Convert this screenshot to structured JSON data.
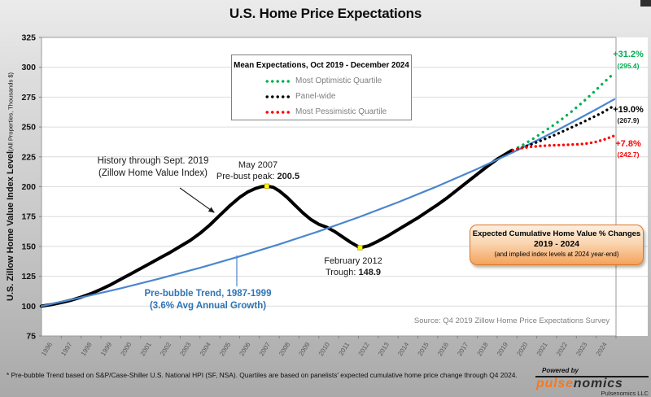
{
  "title": "U.S. Home Price Expectations",
  "y_axis": {
    "title_main": "U.S. Zillow Home Value Index Level",
    "title_sub": " (All Properties, Thousands $)"
  },
  "x_axis": {
    "years": [
      "1996",
      "1997",
      "1998",
      "1999",
      "2000",
      "2001",
      "2002",
      "2003",
      "2004",
      "2005",
      "2006",
      "2007",
      "2008",
      "2009",
      "2010",
      "2011",
      "2012",
      "2013",
      "2014",
      "2015",
      "2016",
      "2017",
      "2018",
      "2019",
      "2020",
      "2021",
      "2022",
      "2023",
      "2024"
    ]
  },
  "legend": {
    "title": "Mean Expectations, Oct 2019 - December 2024",
    "items": [
      {
        "label": "Most Optimistic Quartile",
        "color": "#00B050"
      },
      {
        "label": "Panel-wide",
        "color": "#000000"
      },
      {
        "label": "Most Pessimistic Quartile",
        "color": "#FF0000"
      }
    ]
  },
  "annotations": {
    "history": {
      "line1": "History through Sept. 2019",
      "line2": "(Zillow Home Value Index)"
    },
    "peak": {
      "line1": "May 2007",
      "label": "Pre-bust peak:",
      "value": "200.5"
    },
    "trough": {
      "line1": "February 2012",
      "label": "Trough:",
      "value": "148.9"
    },
    "trend": {
      "line1": "Pre-bubble Trend, 1987-1999",
      "line2": "(3.6% Avg Annual Growth)"
    },
    "optimistic": {
      "pct": "+31.2%",
      "implied": "(295.4)"
    },
    "panel": {
      "pct": "+19.0%",
      "implied": "(267.9)"
    },
    "pessimistic": {
      "pct": "+7.8%",
      "implied": "(242.7)"
    },
    "callout": {
      "line1": "Expected Cumulative Home Value % Changes",
      "line2": "2019 - 2024",
      "line3": "(and implied  index levels at 2024 year-end)"
    },
    "source": "Source: Q4 2019 Zillow Home Price Expectations Survey"
  },
  "footer": {
    "note": "* Pre-bubble Trend based on S&P/Case-Shiller U.S. National HPI (SF, NSA).  Quartiles are based on panelists' expected cumulative home price change through Q4 2024.",
    "powered_by": "Powered by",
    "logo_pulse": "pulse",
    "logo_nomics": "nomics",
    "company": "Pulsenomics LLC"
  },
  "colors": {
    "history": "#000000",
    "trend_line": "#4a86cf",
    "trend_text": "#2e74b5",
    "optimistic": "#00B050",
    "panel": "#000000",
    "pessimistic": "#FF0000",
    "grid": "#dcdcdc",
    "callout_border": "#d9772b",
    "logo_orange": "#f47920"
  },
  "chart_data": {
    "type": "line",
    "title": "U.S. Home Price Expectations",
    "xlabel": "",
    "ylabel": "U.S. Zillow Home Value Index Level (All Properties, Thousands $)",
    "x_range": [
      1996,
      2025
    ],
    "ylim": [
      75,
      325
    ],
    "y_ticks": [
      325,
      300,
      275,
      250,
      225,
      200,
      175,
      150,
      125,
      100,
      75
    ],
    "grid": true,
    "legend_position": "top-center",
    "series": [
      {
        "id": "history",
        "name": "Zillow Home Value Index (history through Sept. 2019)",
        "style": "solid",
        "color": "#000000",
        "width": 4,
        "points": [
          [
            1996.0,
            100
          ],
          [
            1996.5,
            101.3
          ],
          [
            1997.0,
            103
          ],
          [
            1997.5,
            105
          ],
          [
            1998.0,
            107.5
          ],
          [
            1998.5,
            110.5
          ],
          [
            1999.0,
            114
          ],
          [
            1999.5,
            118
          ],
          [
            2000.0,
            122.5
          ],
          [
            2000.5,
            127
          ],
          [
            2001.0,
            131.5
          ],
          [
            2001.5,
            136
          ],
          [
            2002.0,
            140.5
          ],
          [
            2002.5,
            145
          ],
          [
            2003.0,
            150
          ],
          [
            2003.5,
            155
          ],
          [
            2004.0,
            161
          ],
          [
            2004.5,
            168
          ],
          [
            2005.0,
            176
          ],
          [
            2005.5,
            184
          ],
          [
            2006.0,
            191
          ],
          [
            2006.4,
            195.5
          ],
          [
            2006.8,
            198.5
          ],
          [
            2007.1,
            200
          ],
          [
            2007.37,
            200.5
          ],
          [
            2007.7,
            199.5
          ],
          [
            2008.0,
            196.5
          ],
          [
            2008.4,
            191
          ],
          [
            2008.8,
            184.5
          ],
          [
            2009.2,
            178
          ],
          [
            2009.6,
            172.5
          ],
          [
            2010.0,
            168.5
          ],
          [
            2010.4,
            166
          ],
          [
            2010.8,
            162.5
          ],
          [
            2011.2,
            158
          ],
          [
            2011.6,
            153.5
          ],
          [
            2012.08,
            148.9
          ],
          [
            2012.5,
            150.5
          ],
          [
            2013.0,
            154.5
          ],
          [
            2013.5,
            159
          ],
          [
            2014.0,
            164
          ],
          [
            2014.5,
            169
          ],
          [
            2015.0,
            174
          ],
          [
            2015.5,
            179.5
          ],
          [
            2016.0,
            185
          ],
          [
            2016.5,
            191
          ],
          [
            2017.0,
            197.5
          ],
          [
            2017.5,
            204
          ],
          [
            2018.0,
            210.5
          ],
          [
            2018.5,
            217
          ],
          [
            2019.0,
            223
          ],
          [
            2019.4,
            227
          ],
          [
            2019.75,
            230.5
          ]
        ]
      },
      {
        "id": "trend",
        "name": "Pre-bubble Trend 1987-1999 (3.6% avg annual growth)",
        "style": "solid",
        "color": "#4a86cf",
        "width": 2.2,
        "points": [
          [
            1996,
            100
          ],
          [
            1998,
            107.2
          ],
          [
            2000,
            114.9
          ],
          [
            2002,
            123.2
          ],
          [
            2004,
            132.1
          ],
          [
            2006,
            141.6
          ],
          [
            2008,
            151.8
          ],
          [
            2010,
            162.7
          ],
          [
            2012,
            174.4
          ],
          [
            2014,
            187.0
          ],
          [
            2016,
            200.5
          ],
          [
            2018,
            214.9
          ],
          [
            2020,
            230.4
          ],
          [
            2022,
            247.0
          ],
          [
            2024,
            264.8
          ],
          [
            2024.92,
            273.3
          ]
        ]
      },
      {
        "id": "optimistic",
        "name": "Most Optimistic Quartile (mean expectation)",
        "style": "dotted",
        "color": "#00B050",
        "width": 3.3,
        "dot_gap": 7.1,
        "points": [
          [
            2019.79,
            230.5
          ],
          [
            2020.3,
            235
          ],
          [
            2020.8,
            240
          ],
          [
            2021.3,
            245.5
          ],
          [
            2021.8,
            251
          ],
          [
            2022.3,
            257
          ],
          [
            2022.8,
            263.5
          ],
          [
            2023.3,
            270.5
          ],
          [
            2023.8,
            278
          ],
          [
            2024.3,
            286
          ],
          [
            2024.92,
            295.4
          ]
        ]
      },
      {
        "id": "panel",
        "name": "Panel-wide (mean expectation)",
        "style": "dotted",
        "color": "#000000",
        "width": 3.3,
        "dot_gap": 5.9,
        "points": [
          [
            2019.79,
            230.5
          ],
          [
            2020.3,
            233
          ],
          [
            2020.8,
            236
          ],
          [
            2021.3,
            239.2
          ],
          [
            2021.8,
            242.6
          ],
          [
            2022.3,
            246.2
          ],
          [
            2022.8,
            250
          ],
          [
            2023.3,
            253.8
          ],
          [
            2023.8,
            257.8
          ],
          [
            2024.3,
            262
          ],
          [
            2024.92,
            267.9
          ]
        ]
      },
      {
        "id": "pessimistic",
        "name": "Most Pessimistic Quartile (mean expectation)",
        "style": "dotted",
        "color": "#FF0000",
        "width": 3.3,
        "dot_gap": 5.6,
        "points": [
          [
            2019.79,
            230.5
          ],
          [
            2020.2,
            232.3
          ],
          [
            2020.7,
            233.4
          ],
          [
            2021.2,
            234.1
          ],
          [
            2021.7,
            234.6
          ],
          [
            2022.2,
            234.9
          ],
          [
            2022.7,
            235.2
          ],
          [
            2023.2,
            235.6
          ],
          [
            2023.6,
            236.3
          ],
          [
            2024.0,
            237.6
          ],
          [
            2024.45,
            239.8
          ],
          [
            2024.92,
            242.7
          ]
        ]
      }
    ],
    "markers": [
      {
        "id": "pre-bust-peak",
        "x": 2007.37,
        "y": 200.5
      },
      {
        "id": "trough",
        "x": 2012.08,
        "y": 148.9
      }
    ]
  }
}
